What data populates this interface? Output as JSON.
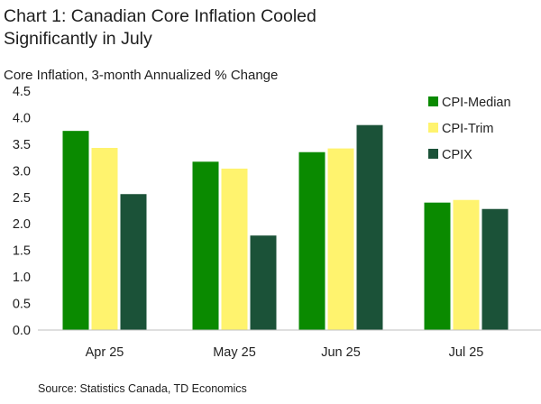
{
  "chart_data": {
    "type": "bar",
    "title_line1": "Chart 1: Canadian Core Inflation Cooled",
    "title_line2": "Significantly in July",
    "subtitle": "Core Inflation, 3-month Annualized % Change",
    "ylabel": "",
    "xlabel": "",
    "ylim": [
      0,
      4.5
    ],
    "yticks": [
      "0.0",
      "0.5",
      "1.0",
      "1.5",
      "2.0",
      "2.5",
      "3.0",
      "3.5",
      "4.0",
      "4.5"
    ],
    "categories": [
      "Apr 25",
      "May 25",
      "Jun 25",
      "Jul 25"
    ],
    "series": [
      {
        "name": "CPI-Median",
        "color": "#0a8a00",
        "values": [
          3.75,
          3.17,
          3.35,
          2.4
        ]
      },
      {
        "name": "CPI-Trim",
        "color": "#fff36e",
        "values": [
          3.43,
          3.04,
          3.42,
          2.45
        ]
      },
      {
        "name": "CPIX",
        "color": "#1b5238",
        "values": [
          2.56,
          1.78,
          3.86,
          2.28
        ]
      }
    ],
    "legend_position": "top-right",
    "grid": false
  },
  "source": "Source: Statistics Canada, TD Economics"
}
